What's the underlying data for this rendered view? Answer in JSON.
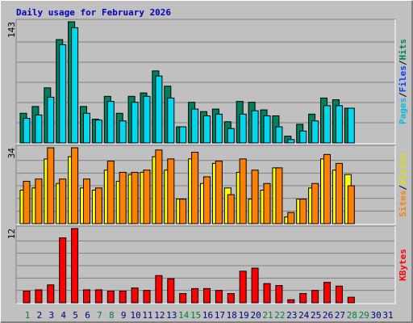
{
  "title": "Daily usage for February 2026",
  "title_color": "#0000c0",
  "days": [
    "1",
    "2",
    "3",
    "4",
    "5",
    "6",
    "7",
    "8",
    "9",
    "10",
    "11",
    "12",
    "13",
    "14",
    "15",
    "16",
    "17",
    "18",
    "19",
    "20",
    "21",
    "22",
    "23",
    "24",
    "25",
    "26",
    "27",
    "28",
    "29",
    "30",
    "31"
  ],
  "weekends": [
    "1",
    "7",
    "8",
    "14",
    "15",
    "21",
    "22",
    "28",
    "29"
  ],
  "day_color": "#000080",
  "weekend_color": "#008040",
  "separator": "/",
  "chart_data": [
    {
      "type": "bar",
      "ylim": [
        0,
        143
      ],
      "yticks": [
        143
      ],
      "legend": [
        {
          "name": "Pages",
          "color": "#00c0e0"
        },
        {
          "name": "Files",
          "color": "#0040ff"
        },
        {
          "name": "Hits",
          "color": "#008060"
        }
      ],
      "series": [
        {
          "color": "#00805c",
          "values": [
            35,
            43,
            65,
            122,
            143,
            43,
            28,
            55,
            35,
            55,
            59,
            85,
            67,
            19,
            48,
            37,
            40,
            25,
            49,
            48,
            39,
            32,
            8,
            22,
            34,
            53,
            51,
            41,
            null,
            null,
            null
          ]
        },
        {
          "color": "#00d8f0",
          "values": [
            29,
            33,
            54,
            116,
            136,
            35,
            27,
            49,
            26,
            48,
            55,
            79,
            53,
            19,
            40,
            32,
            34,
            17,
            34,
            38,
            32,
            19,
            4,
            14,
            26,
            44,
            44,
            41,
            null,
            null,
            null
          ]
        }
      ]
    },
    {
      "type": "bar",
      "ylim": [
        0,
        34
      ],
      "yticks": [
        34
      ],
      "legend": [
        {
          "name": "Sites",
          "color": "#ff8000"
        },
        {
          "name": "Visits",
          "color": "#e0e000"
        }
      ],
      "series": [
        {
          "color": "#ffff00",
          "values": [
            15,
            16,
            29,
            18,
            30,
            16,
            15,
            24,
            19,
            22,
            23,
            30,
            24,
            11,
            29,
            18,
            27,
            16,
            23,
            11,
            15,
            25,
            3,
            11,
            16,
            29,
            24,
            22,
            null,
            null,
            null
          ]
        },
        {
          "color": "#ff8000",
          "values": [
            19,
            20,
            34,
            20,
            34,
            20,
            16,
            28,
            23,
            23,
            24,
            33,
            29,
            11,
            32,
            21,
            28,
            13,
            29,
            24,
            18,
            25,
            5,
            11,
            18,
            31,
            27,
            17,
            null,
            null,
            null
          ]
        }
      ]
    },
    {
      "type": "bar",
      "ylim": [
        0,
        12
      ],
      "yticks": [
        12
      ],
      "legend": [
        {
          "name": "KBytes",
          "color": "#ff0000"
        }
      ],
      "series": [
        {
          "color": "#ff0000",
          "values": [
            1.9,
            2.1,
            2.9,
            10.5,
            12,
            2.1,
            2.1,
            1.9,
            1.9,
            2.4,
            2.0,
            4.4,
            3.9,
            1.5,
            2.3,
            2.3,
            2.0,
            1.5,
            5.1,
            5.6,
            3.1,
            2.8,
            0.5,
            1.5,
            2.0,
            3.3,
            2.7,
            0.9,
            null,
            null,
            null
          ]
        }
      ]
    }
  ]
}
